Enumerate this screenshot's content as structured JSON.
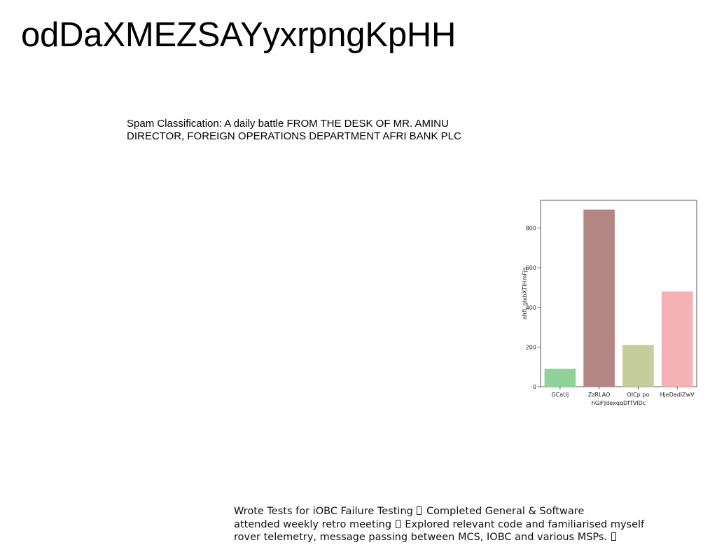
{
  "page": {
    "title": "odDaXMEZSAYyxrpngKpHH"
  },
  "intro": {
    "lines": [
      "Spam Classification: A daily battle FROM THE DESK OF MR. AMINU",
      "DIRECTOR, FOREIGN OPERATIONS DEPARTMENT AFRI BANK PLC"
    ]
  },
  "notes": {
    "line1_a": "Wrote Tests for iOBC Failure Testing",
    "line1_b": "Completed General & Software",
    "line2_a": "attended weekly retro meeting",
    "line2_b": "Explored relevant code and familiarised myself",
    "line3_a": "rover telemetry, message passing between MCS, IOBC and various MSPs.",
    "missing_glyph": "box-glyph"
  },
  "chart_data": {
    "type": "bar",
    "categories": [
      "GCaUj",
      "ZzRLAO",
      "OlCp po",
      "HjeDadiZwV"
    ],
    "values": [
      90,
      893,
      210,
      480
    ],
    "colors": [
      "#8fd39a",
      "#b38683",
      "#c5ce9a",
      "#f4b2b4"
    ],
    "xlabel": "hGiFJdexqqDfTVIDc",
    "ylabel": "ahfL glxbXTIHmFjs",
    "ylim": [
      0,
      940
    ],
    "yticks": [
      0,
      200,
      400,
      600,
      800
    ],
    "grid": false,
    "legend": "none"
  }
}
